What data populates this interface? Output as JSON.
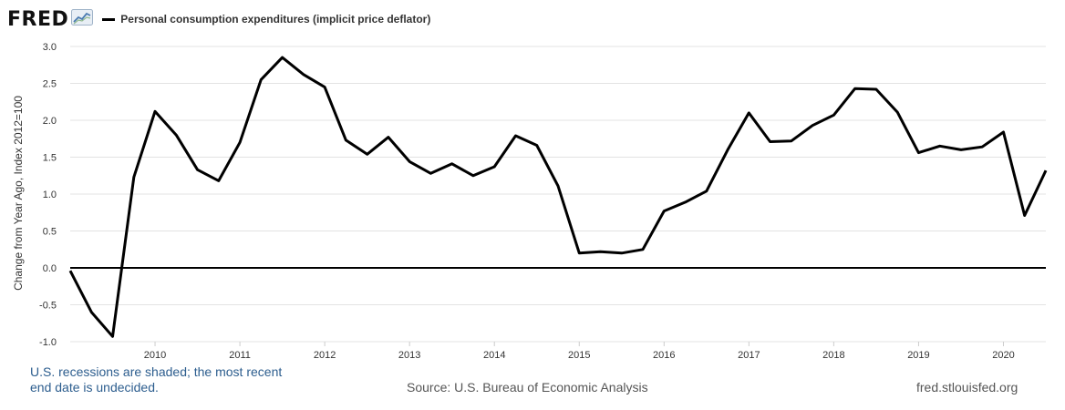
{
  "header": {
    "logo_text": "FRED",
    "logo_icon": "trend-chart-icon",
    "legend_label": "Personal consumption expenditures (implicit price deflator)"
  },
  "footer": {
    "note_line1": "U.S. recessions are shaded; the most recent",
    "note_line2": "end date is undecided.",
    "source": "Source: U.S. Bureau of Economic Analysis",
    "site": "fred.stlouisfed.org"
  },
  "chart_data": {
    "type": "line",
    "ylabel": "Change from Year Ago, Index 2012=100",
    "ylim": [
      -1.0,
      3.0
    ],
    "yticks": [
      "3.0",
      "2.5",
      "2.0",
      "1.5",
      "1.0",
      "0.5",
      "0.0",
      "-0.5",
      "-1.0"
    ],
    "xticks": [
      "2010",
      "2011",
      "2012",
      "2013",
      "2014",
      "2015",
      "2016",
      "2017",
      "2018",
      "2019",
      "2020"
    ],
    "grid": true,
    "zero_line": true,
    "line_color": "#000000",
    "series": [
      {
        "name": "Personal consumption expenditures (implicit price deflator)",
        "x": [
          "2009 Q1",
          "2009 Q2",
          "2009 Q3",
          "2009 Q4",
          "2010 Q1",
          "2010 Q2",
          "2010 Q3",
          "2010 Q4",
          "2011 Q1",
          "2011 Q2",
          "2011 Q3",
          "2011 Q4",
          "2012 Q1",
          "2012 Q2",
          "2012 Q3",
          "2012 Q4",
          "2013 Q1",
          "2013 Q2",
          "2013 Q3",
          "2013 Q4",
          "2014 Q1",
          "2014 Q2",
          "2014 Q3",
          "2014 Q4",
          "2015 Q1",
          "2015 Q2",
          "2015 Q3",
          "2015 Q4",
          "2016 Q1",
          "2016 Q2",
          "2016 Q3",
          "2016 Q4",
          "2017 Q1",
          "2017 Q2",
          "2017 Q3",
          "2017 Q4",
          "2018 Q1",
          "2018 Q2",
          "2018 Q3",
          "2018 Q4",
          "2019 Q1",
          "2019 Q2",
          "2019 Q3",
          "2019 Q4",
          "2020 Q1",
          "2020 Q2",
          "2020 Q3"
        ],
        "values": [
          -0.04,
          -0.6,
          -0.93,
          1.23,
          2.12,
          1.8,
          1.33,
          1.18,
          1.7,
          2.55,
          2.85,
          2.62,
          2.45,
          1.73,
          1.54,
          1.77,
          1.44,
          1.28,
          1.41,
          1.25,
          1.37,
          1.79,
          1.66,
          1.11,
          0.2,
          0.22,
          0.2,
          0.25,
          0.77,
          0.89,
          1.04,
          1.6,
          2.1,
          1.71,
          1.72,
          1.93,
          2.07,
          2.43,
          2.42,
          2.11,
          1.56,
          1.65,
          1.6,
          1.64,
          1.84,
          0.71,
          1.32
        ]
      }
    ]
  }
}
